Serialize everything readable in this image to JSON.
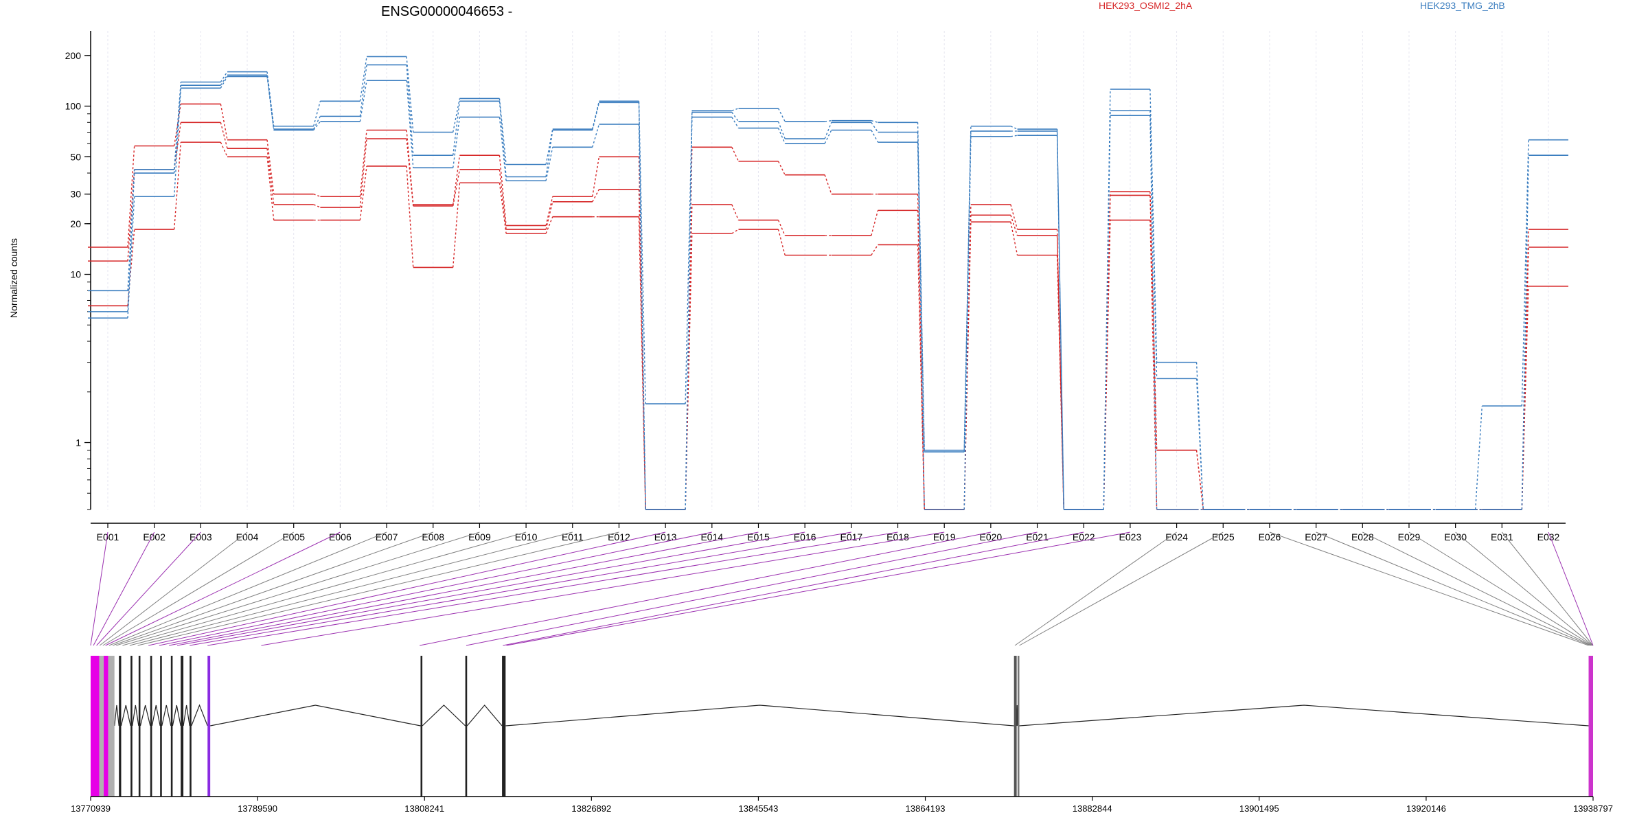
{
  "chart_data": {
    "type": "line",
    "title": "ENSG00000046653 -",
    "ylabel": "Normalized counts",
    "xlabel": "",
    "yscale": "log",
    "ylim": [
      0.4,
      280
    ],
    "yticks": [
      1,
      10,
      20,
      30,
      50,
      100,
      200
    ],
    "ytick_labels": [
      "1",
      "10",
      "20",
      "30",
      "50",
      "100",
      "200"
    ],
    "legend": [
      {
        "label": "HEK293_OSMI2_2hA",
        "color": "#d62728"
      },
      {
        "label": "HEK293_TMG_2hB",
        "color": "#3a7dbf"
      }
    ],
    "categories": [
      "E001",
      "E002",
      "E003",
      "E004",
      "E005",
      "E006",
      "E007",
      "E008",
      "E009",
      "E010",
      "E011",
      "E012",
      "E013",
      "E014",
      "E015",
      "E016",
      "E017",
      "E018",
      "E019",
      "E020",
      "E021",
      "E022",
      "E023",
      "E024",
      "E025",
      "E026",
      "E027",
      "E028",
      "E029",
      "E030",
      "E031",
      "E032"
    ],
    "series": [
      {
        "group": "HEK293_OSMI2_2hA",
        "color": "#d62728",
        "values": [
          14.5,
          58,
          103,
          63,
          30,
          29,
          72,
          26,
          51,
          19.5,
          29,
          50,
          0.4,
          57,
          47,
          39,
          30,
          30,
          0.4,
          26,
          18.5,
          0.4,
          31,
          0.9,
          0.4,
          0.4,
          0.4,
          0.4,
          0.4,
          0.4,
          0.4,
          18.5
        ]
      },
      {
        "group": "HEK293_OSMI2_2hA",
        "color": "#d62728",
        "values": [
          12,
          42,
          80,
          56,
          26,
          25,
          64,
          25.5,
          42,
          18.5,
          27,
          32,
          0.4,
          26,
          21,
          17,
          17,
          24,
          0.4,
          22.5,
          17,
          0.4,
          29.5,
          0.9,
          0.4,
          0.4,
          0.4,
          0.4,
          0.4,
          0.4,
          0.4,
          14.5
        ]
      },
      {
        "group": "HEK293_OSMI2_2hA",
        "color": "#d62728",
        "values": [
          6.5,
          18.5,
          61,
          50,
          21,
          21,
          44,
          11,
          35,
          17.5,
          22,
          22,
          0.4,
          17.5,
          18.5,
          13,
          13,
          15,
          0.4,
          20.5,
          13,
          0.4,
          21,
          0.4,
          0.4,
          0.4,
          0.4,
          0.4,
          0.4,
          0.4,
          0.4,
          8.5
        ]
      },
      {
        "group": "HEK293_TMG_2hB",
        "color": "#3a7dbf",
        "values": [
          8,
          42,
          139,
          160,
          76,
          107,
          197,
          70,
          111,
          45,
          73,
          107,
          1.7,
          94,
          97,
          81,
          82,
          80,
          0.9,
          76,
          73,
          0.4,
          126,
          3,
          0.4,
          0.4,
          0.4,
          0.4,
          0.4,
          0.4,
          1.65,
          63
        ]
      },
      {
        "group": "HEK293_TMG_2hB",
        "color": "#3a7dbf",
        "values": [
          6,
          40,
          133,
          153,
          73,
          87,
          176,
          51,
          107,
          38,
          72,
          105,
          0.4,
          92,
          81,
          64,
          80,
          70,
          0.88,
          71,
          71,
          0.4,
          94,
          2.4,
          0.4,
          0.4,
          0.4,
          0.4,
          0.4,
          0.4,
          0.4,
          51
        ]
      },
      {
        "group": "HEK293_TMG_2hB",
        "color": "#3a7dbf",
        "values": [
          5.5,
          29,
          128,
          150,
          72,
          81,
          142,
          43,
          86,
          36,
          57,
          78,
          0.4,
          86,
          74,
          60,
          72,
          61,
          0.4,
          66,
          67,
          0.4,
          88,
          0.4,
          0.4,
          0.4,
          0.4,
          0.4,
          0.4,
          0.4,
          0.4,
          51
        ]
      }
    ]
  },
  "gene_model": {
    "coord_ticks": [
      "13770939",
      "13789590",
      "13808241",
      "13826892",
      "13845543",
      "13864193",
      "13882844",
      "13901495",
      "13920146",
      "13938797"
    ],
    "range": [
      13770939,
      13938797
    ],
    "exon_positions": [
      13770939,
      13771250,
      13771600,
      13771950,
      13772300,
      13772600,
      13773000,
      13773400,
      13773800,
      13774500,
      13775300,
      13776200,
      13777400,
      13778600,
      13779700,
      13780600,
      13782000,
      13784000,
      13790000,
      13807700,
      13812900,
      13817000,
      13817400,
      13874200,
      13874700,
      13938300,
      13938500,
      13938600,
      13938700,
      13938750,
      13938780,
      13938797
    ],
    "highlighted_exons": [
      "E001",
      "E002",
      "E003",
      "E006",
      "E013",
      "E014",
      "E015",
      "E016",
      "E017",
      "E018",
      "E019",
      "E020",
      "E021",
      "E022",
      "E023",
      "E032"
    ],
    "gene_blocks": [
      {
        "start": 13770939,
        "end": 13771900,
        "color": "#e600e6"
      },
      {
        "start": 13771900,
        "end": 13772400,
        "color": "#b0b0b0"
      },
      {
        "start": 13772400,
        "end": 13772900,
        "color": "#e600e6"
      },
      {
        "start": 13772900,
        "end": 13773600,
        "color": "#b0b0b0"
      },
      {
        "start": 13774100,
        "end": 13774350,
        "color": "#222222"
      },
      {
        "start": 13775400,
        "end": 13775600,
        "color": "#222222"
      },
      {
        "start": 13776300,
        "end": 13776500,
        "color": "#222222"
      },
      {
        "start": 13777600,
        "end": 13777800,
        "color": "#222222"
      },
      {
        "start": 13778700,
        "end": 13778900,
        "color": "#222222"
      },
      {
        "start": 13779900,
        "end": 13780100,
        "color": "#222222"
      },
      {
        "start": 13781000,
        "end": 13781300,
        "color": "#222222"
      },
      {
        "start": 13782000,
        "end": 13782200,
        "color": "#222222"
      },
      {
        "start": 13784000,
        "end": 13784300,
        "color": "#8a2be2"
      },
      {
        "start": 13807800,
        "end": 13808000,
        "color": "#222222"
      },
      {
        "start": 13812800,
        "end": 13813000,
        "color": "#222222"
      },
      {
        "start": 13816900,
        "end": 13817300,
        "color": "#222222"
      },
      {
        "start": 13874100,
        "end": 13874400,
        "color": "#555555"
      },
      {
        "start": 13874500,
        "end": 13874700,
        "color": "#777777"
      },
      {
        "start": 13938300,
        "end": 13938797,
        "color": "#cc33cc"
      }
    ],
    "introns": [
      [
        13773600,
        13774100
      ],
      [
        13774350,
        13775400
      ],
      [
        13775600,
        13776300
      ],
      [
        13776500,
        13777600
      ],
      [
        13777800,
        13778700
      ],
      [
        13778900,
        13779900
      ],
      [
        13780100,
        13781000
      ],
      [
        13781300,
        13782000
      ],
      [
        13782200,
        13784000
      ],
      [
        13784300,
        13807800
      ],
      [
        13808000,
        13812800
      ],
      [
        13813000,
        13816900
      ],
      [
        13817300,
        13874100
      ],
      [
        13874400,
        13874500
      ],
      [
        13874700,
        13938300
      ]
    ]
  }
}
